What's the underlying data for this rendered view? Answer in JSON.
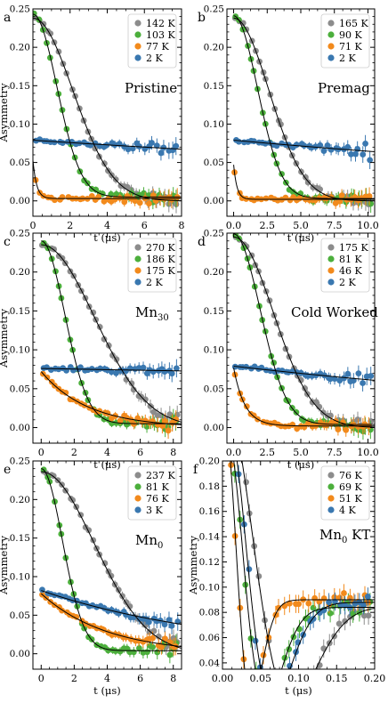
{
  "figure": {
    "panels": [
      "a",
      "b",
      "c",
      "d",
      "e",
      "f"
    ]
  },
  "colors": {
    "gray": "#8c8c8c",
    "green": "#4caf3c",
    "orange": "#f28a1c",
    "blue": "#3a78b0",
    "fit": "#000000"
  },
  "chart_data": [
    {
      "panel_letter": "a",
      "type": "scatter",
      "title": "Pristine",
      "xlabel": "t (μs)",
      "ylabel": "Asymmetry",
      "xlim": [
        0,
        8
      ],
      "ylim": [
        -0.02,
        0.25
      ],
      "xticks": [
        "0",
        "2",
        "4",
        "6",
        "8"
      ],
      "yticks": [
        "0.00",
        "0.05",
        "0.10",
        "0.15",
        "0.20",
        "0.25"
      ],
      "legend_position": "top-right",
      "series": [
        {
          "name": "142 K",
          "color": "gray",
          "model": {
            "kind": "gauss",
            "a0": 0.238,
            "rate": 0.33,
            "base": 0.0
          }
        },
        {
          "name": "103 K",
          "color": "green",
          "model": {
            "kind": "gauss",
            "a0": 0.238,
            "rate": 0.55,
            "base": 0.005
          }
        },
        {
          "name": "77 K",
          "color": "orange",
          "model": {
            "kind": "exp",
            "a0": 0.05,
            "rate": 5.0,
            "base": 0.003
          }
        },
        {
          "name": "2 K",
          "color": "blue",
          "model": {
            "kind": "exp",
            "a0": 0.079,
            "rate": 0.02,
            "base": 0.0
          }
        }
      ]
    },
    {
      "panel_letter": "b",
      "type": "scatter",
      "title": "Premag",
      "xlabel": "t (μs)",
      "ylabel": "",
      "xlim": [
        -0.5,
        10.5
      ],
      "ylim": [
        -0.02,
        0.25
      ],
      "xticks": [
        "0.0",
        "2.5",
        "5.0",
        "7.5",
        "10.0"
      ],
      "yticks": [
        "0.00",
        "0.05",
        "0.10",
        "0.15",
        "0.20",
        "0.25"
      ],
      "legend_position": "top-right",
      "series": [
        {
          "name": "165 K",
          "color": "gray",
          "model": {
            "kind": "gauss",
            "a0": 0.238,
            "rate": 0.27,
            "base": 0.0
          }
        },
        {
          "name": "90 K",
          "color": "green",
          "model": {
            "kind": "gauss",
            "a0": 0.238,
            "rate": 0.4,
            "base": 0.003
          }
        },
        {
          "name": "71 K",
          "color": "orange",
          "model": {
            "kind": "exp",
            "a0": 0.045,
            "rate": 4.0,
            "base": 0.002
          }
        },
        {
          "name": "2 K",
          "color": "blue",
          "model": {
            "kind": "exp",
            "a0": 0.079,
            "rate": 0.02,
            "base": 0.0
          }
        }
      ]
    },
    {
      "panel_letter": "c",
      "type": "scatter",
      "title": "Mn30",
      "xlabel": "t (μs)",
      "ylabel": "Asymmetry",
      "xlim": [
        -0.5,
        8.5
      ],
      "ylim": [
        -0.02,
        0.25
      ],
      "xticks": [
        "0",
        "2",
        "4",
        "6",
        "8"
      ],
      "yticks": [
        "0.00",
        "0.05",
        "0.10",
        "0.15",
        "0.20",
        "0.25"
      ],
      "legend_position": "top-right",
      "series": [
        {
          "name": "270 K",
          "color": "gray",
          "model": {
            "kind": "gauss",
            "a0": 0.235,
            "rate": 0.22,
            "base": 0.0
          }
        },
        {
          "name": "186 K",
          "color": "green",
          "model": {
            "kind": "gauss",
            "a0": 0.235,
            "rate": 0.5,
            "base": 0.005
          }
        },
        {
          "name": "175 K",
          "color": "orange",
          "model": {
            "kind": "exp",
            "a0": 0.072,
            "rate": 0.35,
            "base": 0.0
          }
        },
        {
          "name": "2 K",
          "color": "blue",
          "model": {
            "kind": "exp",
            "a0": 0.076,
            "rate": 0.005,
            "base": 0.0
          }
        }
      ]
    },
    {
      "panel_letter": "d",
      "type": "scatter",
      "title": "Cold Worked",
      "xlabel": "t (μs)",
      "ylabel": "",
      "xlim": [
        -0.5,
        10.5
      ],
      "ylim": [
        -0.02,
        0.25
      ],
      "xticks": [
        "0.0",
        "2.5",
        "5.0",
        "7.5",
        "10.0"
      ],
      "yticks": [
        "0.00",
        "0.05",
        "0.10",
        "0.15",
        "0.20",
        "0.25"
      ],
      "legend_position": "top-right",
      "series": [
        {
          "name": "175 K",
          "color": "gray",
          "model": {
            "kind": "gauss",
            "a0": 0.245,
            "rate": 0.24,
            "base": 0.0
          }
        },
        {
          "name": "81 K",
          "color": "green",
          "model": {
            "kind": "gauss",
            "a0": 0.245,
            "rate": 0.36,
            "base": 0.004
          }
        },
        {
          "name": "46 K",
          "color": "orange",
          "model": {
            "kind": "exp",
            "a0": 0.075,
            "rate": 1.2,
            "base": 0.002
          }
        },
        {
          "name": "2 K",
          "color": "blue",
          "model": {
            "kind": "exp",
            "a0": 0.079,
            "rate": 0.025,
            "base": 0.0
          }
        }
      ]
    },
    {
      "panel_letter": "e",
      "type": "scatter",
      "title": "Mn0",
      "xlabel": "t (μs)",
      "ylabel": "Asymmetry",
      "xlim": [
        -0.5,
        8.5
      ],
      "ylim": [
        -0.02,
        0.25
      ],
      "xticks": [
        "0",
        "2",
        "4",
        "6",
        "8"
      ],
      "yticks": [
        "0.00",
        "0.05",
        "0.10",
        "0.15",
        "0.20",
        "0.25"
      ],
      "legend_position": "top-right",
      "series": [
        {
          "name": "237 K",
          "color": "gray",
          "model": {
            "kind": "gauss",
            "a0": 0.236,
            "rate": 0.22,
            "base": 0.0
          }
        },
        {
          "name": "81 K",
          "color": "green",
          "model": {
            "kind": "gauss",
            "a0": 0.236,
            "rate": 0.55,
            "base": 0.004
          }
        },
        {
          "name": "76 K",
          "color": "orange",
          "model": {
            "kind": "exp",
            "a0": 0.078,
            "rate": 0.25,
            "base": 0.0
          }
        },
        {
          "name": "3 K",
          "color": "blue",
          "model": {
            "kind": "exp",
            "a0": 0.082,
            "rate": 0.09,
            "base": 0.0
          }
        }
      ]
    },
    {
      "panel_letter": "f",
      "type": "scatter",
      "title": "Mn0 KT",
      "xlabel": "t (μs)",
      "ylabel": "Asymmetry",
      "xlim": [
        0,
        0.2
      ],
      "ylim": [
        0.035,
        0.2
      ],
      "xticks": [
        "0.00",
        "0.05",
        "0.10",
        "0.15",
        "0.20"
      ],
      "yticks": [
        "0.04",
        "0.06",
        "0.08",
        "0.10",
        "0.12",
        "0.14",
        "0.16",
        "0.18",
        "0.20"
      ],
      "legend_position": "top-right",
      "series": [
        {
          "name": "76 K",
          "color": "gray",
          "model": {
            "kind": "kt",
            "a0": 0.235,
            "delta": 19,
            "base": 0.0,
            "late": 0.085
          }
        },
        {
          "name": "69 K",
          "color": "green",
          "model": {
            "kind": "kt",
            "a0": 0.235,
            "delta": 30,
            "base": 0.0,
            "late": 0.084
          }
        },
        {
          "name": "51 K",
          "color": "orange",
          "model": {
            "kind": "kt",
            "a0": 0.235,
            "delta": 45,
            "base": 0.0,
            "late": 0.09
          }
        },
        {
          "name": "4 K",
          "color": "blue",
          "model": {
            "kind": "kt",
            "a0": 0.235,
            "delta": 26,
            "base": 0.0,
            "late": 0.088
          }
        }
      ]
    }
  ]
}
